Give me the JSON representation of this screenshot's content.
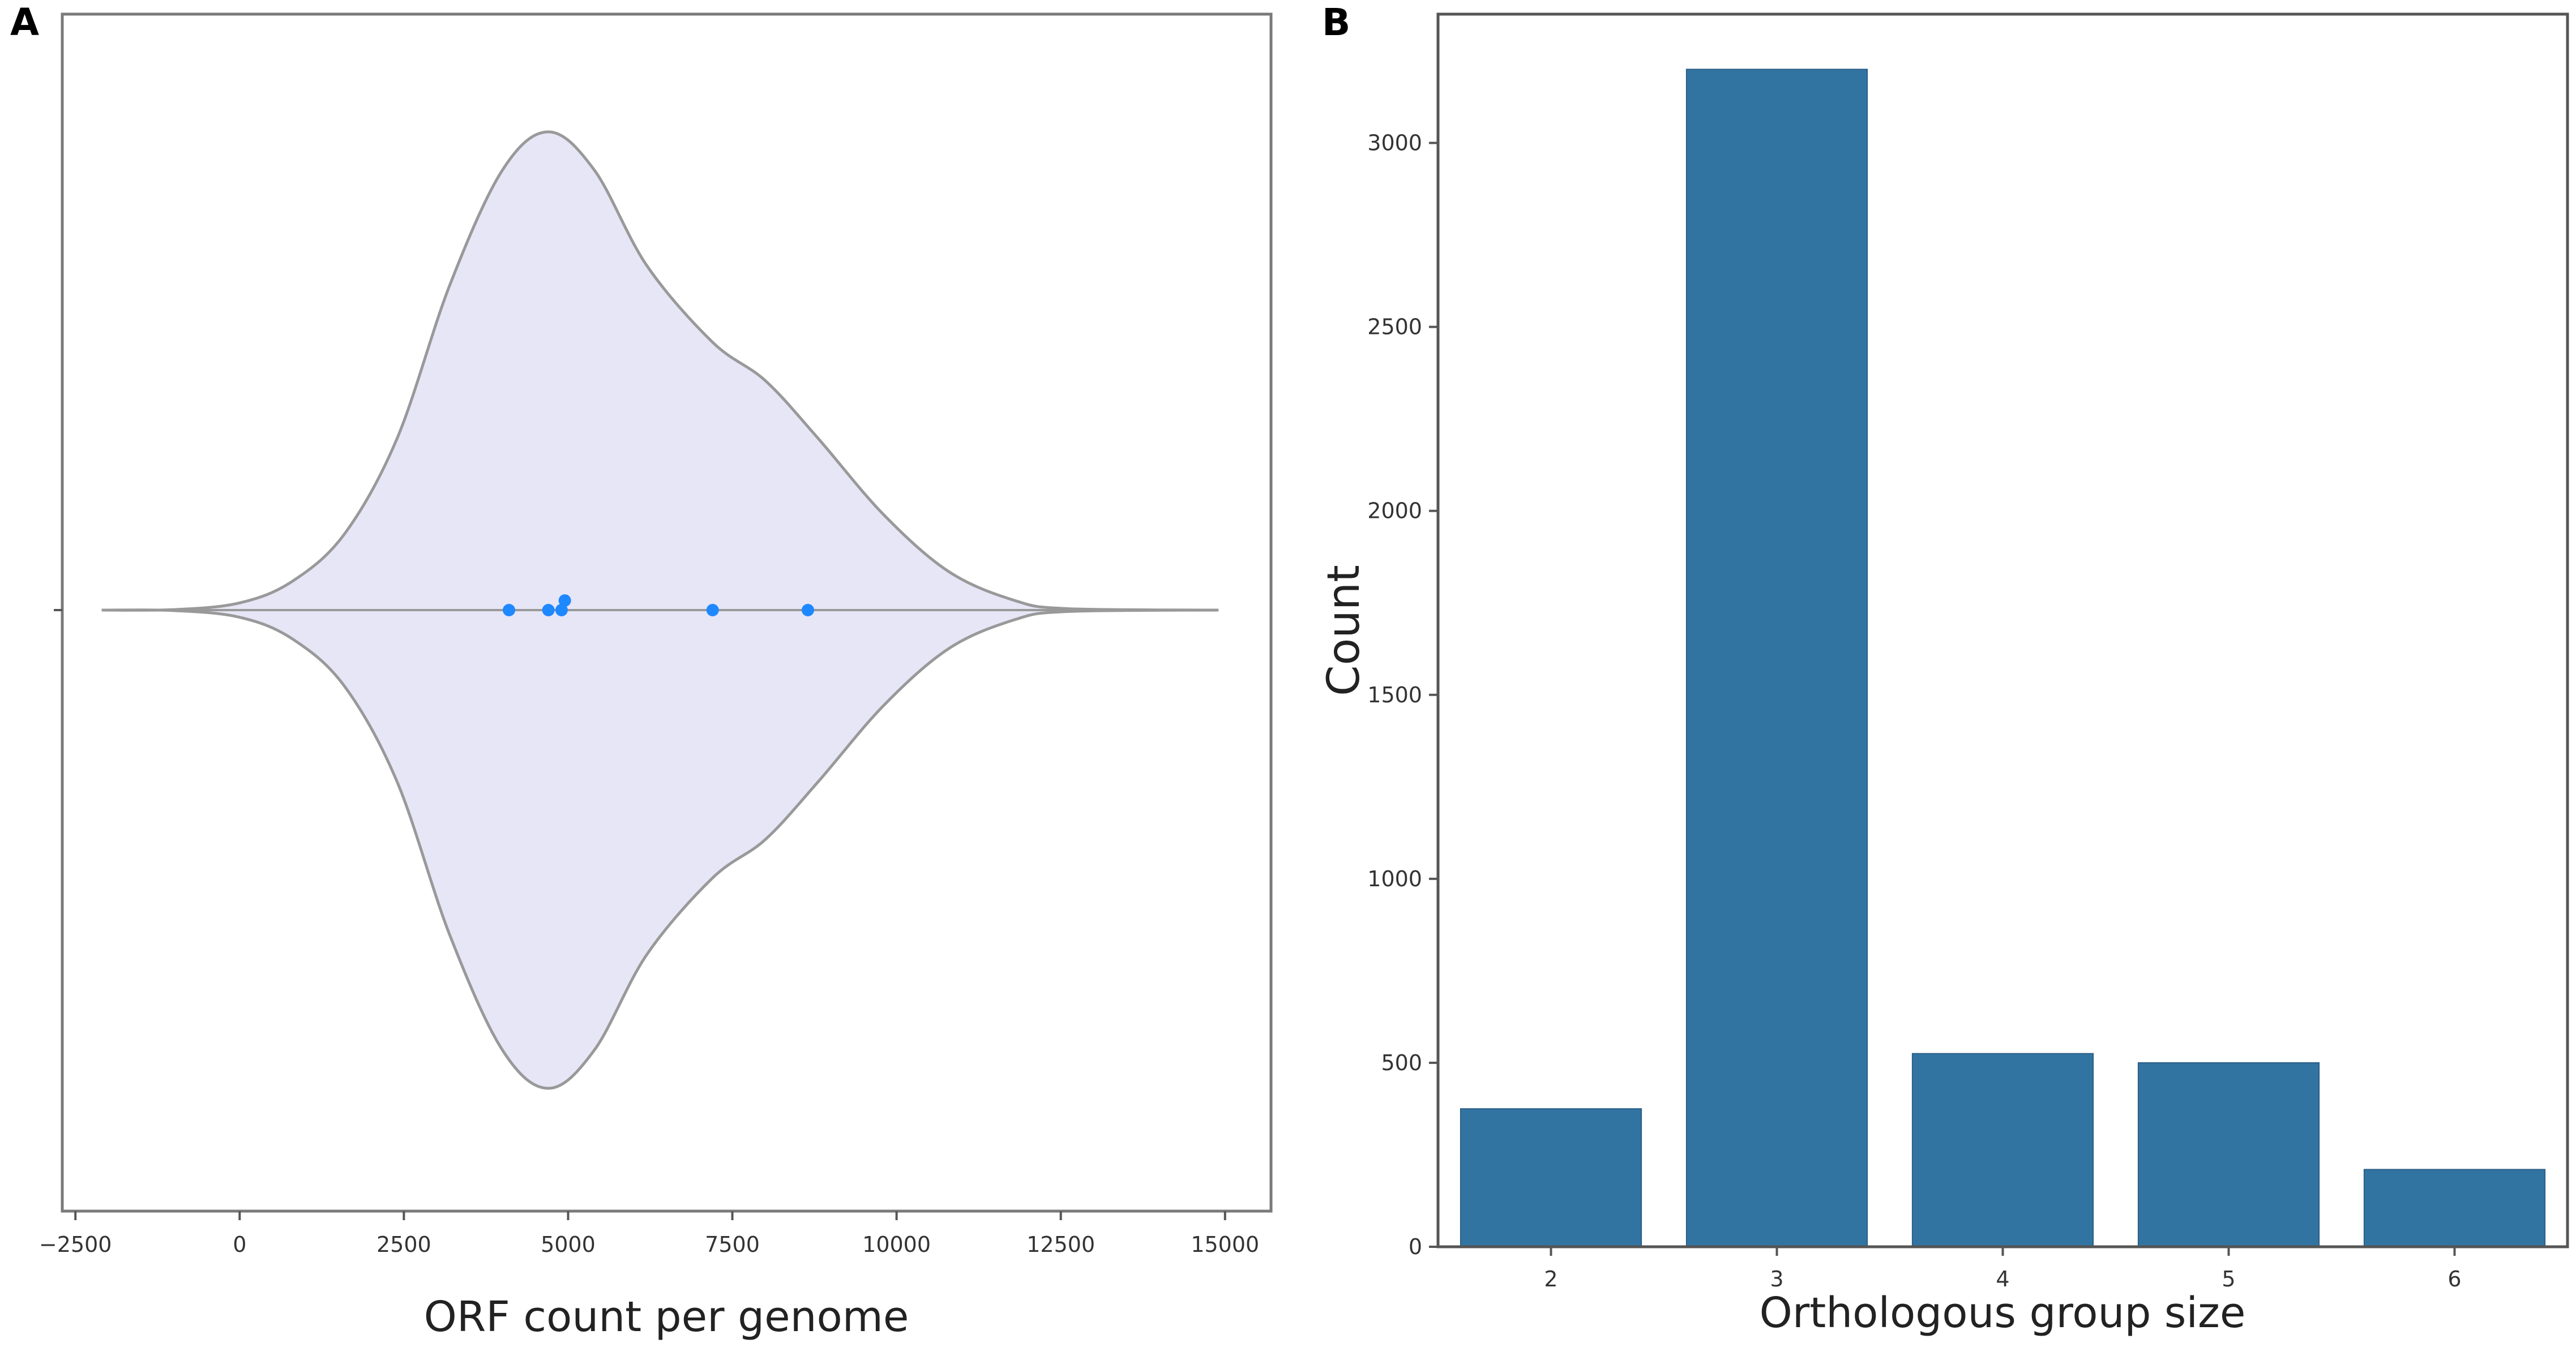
{
  "panels": {
    "a_label": "A",
    "b_label": "B"
  },
  "chart_data": [
    {
      "panel": "A",
      "type": "violin",
      "title": "",
      "xlabel": "ORF count per genome",
      "ylabel": "",
      "xlim": [
        -2700,
        15700
      ],
      "xticks": [
        -2500,
        0,
        2500,
        5000,
        7500,
        10000,
        12500,
        15000
      ],
      "xtick_labels": [
        "−2500",
        "0",
        "2500",
        "5000",
        "7500",
        "10000",
        "12500",
        "15000"
      ],
      "points": [
        {
          "x": 4100,
          "jitter": 0
        },
        {
          "x": 4700,
          "jitter": 0
        },
        {
          "x": 4900,
          "jitter": 0
        },
        {
          "x": 4950,
          "jitter": 0.02
        },
        {
          "x": 7200,
          "jitter": 0
        },
        {
          "x": 8650,
          "jitter": 0
        }
      ],
      "density_profile": [
        [
          -2100,
          0.0
        ],
        [
          -1000,
          0.001
        ],
        [
          0,
          0.015
        ],
        [
          800,
          0.06
        ],
        [
          1600,
          0.16
        ],
        [
          2400,
          0.36
        ],
        [
          3200,
          0.68
        ],
        [
          4000,
          0.92
        ],
        [
          4700,
          1.0
        ],
        [
          5400,
          0.92
        ],
        [
          6200,
          0.72
        ],
        [
          7200,
          0.56
        ],
        [
          8000,
          0.48
        ],
        [
          8800,
          0.36
        ],
        [
          9800,
          0.2
        ],
        [
          10800,
          0.08
        ],
        [
          11800,
          0.02
        ],
        [
          12600,
          0.003
        ],
        [
          14900,
          0.0
        ]
      ],
      "colors": {
        "fill": "#e6e6f7",
        "stroke": "#999999",
        "points": "#1e88ff"
      }
    },
    {
      "panel": "B",
      "type": "bar",
      "title": "",
      "xlabel": "Orthologous group size",
      "ylabel": "Count",
      "categories": [
        "2",
        "3",
        "4",
        "5",
        "6"
      ],
      "values": [
        375,
        3200,
        525,
        500,
        210
      ],
      "ylim": [
        0,
        3350
      ],
      "yticks": [
        0,
        500,
        1000,
        1500,
        2000,
        2500,
        3000
      ],
      "colors": {
        "bar": "#3274a1",
        "axis": "#666666"
      }
    }
  ]
}
